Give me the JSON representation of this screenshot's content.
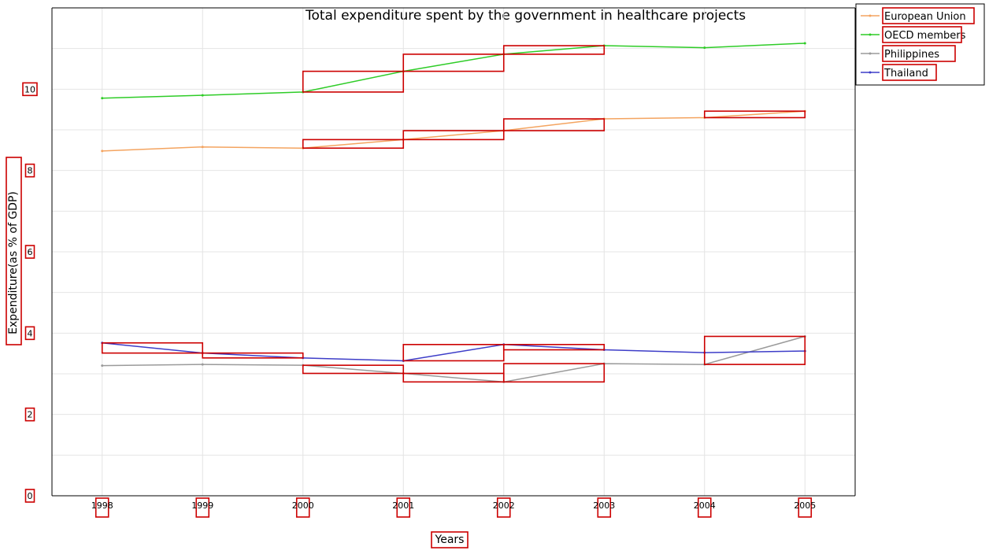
{
  "chart_data": {
    "type": "line",
    "title": "Total expenditure spent by the government in healthcare projects",
    "xlabel": "Years",
    "ylabel": "Expenditure(as % of GDP)",
    "categories": [
      "1998",
      "1999",
      "2000",
      "2001",
      "2002",
      "2003",
      "2004",
      "2005"
    ],
    "ylim": [
      0,
      12
    ],
    "yticks": [
      "0",
      "2",
      "4",
      "6",
      "8",
      "10"
    ],
    "grid": true,
    "legend_position": "top-right",
    "series": [
      {
        "name": "European Union",
        "color": "#f4a460",
        "values": [
          8.48,
          8.58,
          8.55,
          8.76,
          8.98,
          9.27,
          9.3,
          9.46
        ]
      },
      {
        "name": "OECD members",
        "color": "#2ecc27",
        "values": [
          9.78,
          9.85,
          9.93,
          10.44,
          10.86,
          11.07,
          11.02,
          11.13
        ]
      },
      {
        "name": "Philippines",
        "color": "#9a9a9a",
        "values": [
          3.2,
          3.23,
          3.21,
          3.01,
          2.8,
          3.25,
          3.23,
          3.92
        ]
      },
      {
        "name": "Thailand",
        "color": "#3d3dc8",
        "values": [
          3.76,
          3.51,
          3.39,
          3.32,
          3.72,
          3.59,
          3.52,
          3.56
        ]
      }
    ]
  }
}
